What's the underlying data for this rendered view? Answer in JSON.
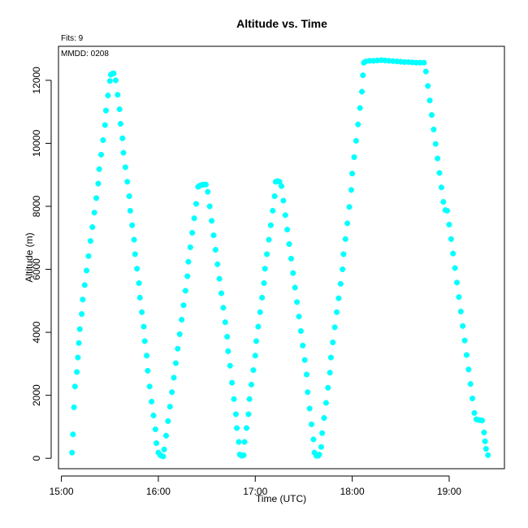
{
  "chart_data": {
    "type": "scatter",
    "title": "Altitude  vs. Time",
    "fits_note": "Fits: 9",
    "mmdd_note": "MMDD: 0208",
    "xlabel": "Time (UTC)",
    "ylabel": "Altitude (m)",
    "x_unit": "hours UTC",
    "xlim": [
      14.97,
      19.57
    ],
    "ylim": [
      -330,
      13080
    ],
    "x_ticks": [
      {
        "value": 15,
        "label": "15:00"
      },
      {
        "value": 16,
        "label": "16:00"
      },
      {
        "value": 17,
        "label": "17:00"
      },
      {
        "value": 18,
        "label": "18:00"
      },
      {
        "value": 19,
        "label": "19:00"
      }
    ],
    "y_ticks": [
      {
        "value": 0,
        "label": "0"
      },
      {
        "value": 2000,
        "label": "2000"
      },
      {
        "value": 4000,
        "label": "4000"
      },
      {
        "value": 6000,
        "label": "6000"
      },
      {
        "value": 8000,
        "label": "8000"
      },
      {
        "value": 10000,
        "label": "10000"
      },
      {
        "value": 12000,
        "label": "12000"
      }
    ],
    "grid": false,
    "marker_color": "#00ffff",
    "series": [
      {
        "points": [
          [
            15.11,
            180
          ],
          [
            15.12,
            760
          ],
          [
            15.13,
            1620
          ],
          [
            15.14,
            2280
          ],
          [
            15.16,
            2740
          ],
          [
            15.17,
            3200
          ],
          [
            15.18,
            3660
          ],
          [
            15.19,
            4100
          ],
          [
            15.21,
            4580
          ],
          [
            15.22,
            5040
          ],
          [
            15.24,
            5500
          ],
          [
            15.26,
            5960
          ],
          [
            15.28,
            6420
          ],
          [
            15.3,
            6900
          ],
          [
            15.32,
            7340
          ],
          [
            15.34,
            7800
          ],
          [
            15.36,
            8260
          ],
          [
            15.38,
            8720
          ],
          [
            15.39,
            9180
          ],
          [
            15.41,
            9640
          ],
          [
            15.43,
            10100
          ],
          [
            15.45,
            10580
          ],
          [
            15.46,
            11040
          ],
          [
            15.48,
            11520
          ],
          [
            15.5,
            11980
          ],
          [
            15.51,
            12180
          ],
          [
            15.53,
            12220
          ],
          [
            15.54,
            12220
          ],
          [
            15.56,
            12000
          ],
          [
            15.58,
            11540
          ],
          [
            15.6,
            11080
          ],
          [
            15.61,
            10620
          ],
          [
            15.63,
            10160
          ],
          [
            15.64,
            9700
          ],
          [
            15.66,
            9240
          ],
          [
            15.68,
            8780
          ],
          [
            15.7,
            8320
          ],
          [
            15.71,
            7860
          ],
          [
            15.73,
            7400
          ],
          [
            15.75,
            6940
          ],
          [
            15.76,
            6480
          ],
          [
            15.78,
            6020
          ],
          [
            15.8,
            5560
          ],
          [
            15.81,
            5100
          ],
          [
            15.83,
            4640
          ],
          [
            15.85,
            4180
          ],
          [
            15.86,
            3720
          ],
          [
            15.88,
            3260
          ],
          [
            15.89,
            2780
          ],
          [
            15.91,
            2280
          ],
          [
            15.93,
            1800
          ],
          [
            15.95,
            1360
          ],
          [
            15.97,
            920
          ],
          [
            15.98,
            480
          ],
          [
            16.0,
            180
          ],
          [
            16.02,
            100
          ],
          [
            16.03,
            80
          ],
          [
            16.05,
            60
          ],
          [
            16.06,
            280
          ],
          [
            16.08,
            720
          ],
          [
            16.1,
            1180
          ],
          [
            16.12,
            1640
          ],
          [
            16.14,
            2100
          ],
          [
            16.16,
            2560
          ],
          [
            16.18,
            3020
          ],
          [
            16.2,
            3480
          ],
          [
            16.22,
            3940
          ],
          [
            16.24,
            4400
          ],
          [
            16.26,
            4860
          ],
          [
            16.28,
            5320
          ],
          [
            16.3,
            5780
          ],
          [
            16.31,
            6240
          ],
          [
            16.33,
            6700
          ],
          [
            16.35,
            7160
          ],
          [
            16.37,
            7620
          ],
          [
            16.39,
            8080
          ],
          [
            16.41,
            8620
          ],
          [
            16.43,
            8660
          ],
          [
            16.45,
            8680
          ],
          [
            16.47,
            8690
          ],
          [
            16.49,
            8690
          ],
          [
            16.51,
            8460
          ],
          [
            16.53,
            8000
          ],
          [
            16.55,
            7540
          ],
          [
            16.57,
            7080
          ],
          [
            16.59,
            6620
          ],
          [
            16.61,
            6160
          ],
          [
            16.63,
            5700
          ],
          [
            16.65,
            5240
          ],
          [
            16.67,
            4780
          ],
          [
            16.69,
            4320
          ],
          [
            16.71,
            3860
          ],
          [
            16.72,
            3400
          ],
          [
            16.74,
            2940
          ],
          [
            16.76,
            2400
          ],
          [
            16.78,
            1880
          ],
          [
            16.8,
            1400
          ],
          [
            16.81,
            960
          ],
          [
            16.83,
            520
          ],
          [
            16.84,
            120
          ],
          [
            16.86,
            80
          ],
          [
            16.88,
            100
          ],
          [
            16.89,
            520
          ],
          [
            16.91,
            960
          ],
          [
            16.93,
            1400
          ],
          [
            16.94,
            1880
          ],
          [
            16.96,
            2340
          ],
          [
            16.98,
            2800
          ],
          [
            17.0,
            3260
          ],
          [
            17.01,
            3720
          ],
          [
            17.03,
            4180
          ],
          [
            17.05,
            4640
          ],
          [
            17.07,
            5100
          ],
          [
            17.09,
            5560
          ],
          [
            17.1,
            6020
          ],
          [
            17.12,
            6480
          ],
          [
            17.14,
            6940
          ],
          [
            17.16,
            7400
          ],
          [
            17.18,
            7860
          ],
          [
            17.2,
            8320
          ],
          [
            17.21,
            8780
          ],
          [
            17.23,
            8800
          ],
          [
            17.25,
            8780
          ],
          [
            17.27,
            8640
          ],
          [
            17.29,
            8180
          ],
          [
            17.31,
            7720
          ],
          [
            17.33,
            7260
          ],
          [
            17.35,
            6800
          ],
          [
            17.37,
            6340
          ],
          [
            17.39,
            5880
          ],
          [
            17.41,
            5420
          ],
          [
            17.43,
            4960
          ],
          [
            17.45,
            4500
          ],
          [
            17.47,
            4040
          ],
          [
            17.49,
            3580
          ],
          [
            17.51,
            3120
          ],
          [
            17.53,
            2660
          ],
          [
            17.54,
            2100
          ],
          [
            17.56,
            1580
          ],
          [
            17.58,
            1080
          ],
          [
            17.6,
            600
          ],
          [
            17.61,
            180
          ],
          [
            17.63,
            80
          ],
          [
            17.65,
            80
          ],
          [
            17.66,
            120
          ],
          [
            17.68,
            360
          ],
          [
            17.69,
            800
          ],
          [
            17.71,
            1280
          ],
          [
            17.73,
            1760
          ],
          [
            17.75,
            2240
          ],
          [
            17.77,
            2720
          ],
          [
            17.78,
            3200
          ],
          [
            17.8,
            3680
          ],
          [
            17.82,
            4160
          ],
          [
            17.84,
            4640
          ],
          [
            17.86,
            5080
          ],
          [
            17.88,
            5540
          ],
          [
            17.9,
            6000
          ],
          [
            17.91,
            6480
          ],
          [
            17.93,
            6960
          ],
          [
            17.95,
            7460
          ],
          [
            17.97,
            7980
          ],
          [
            17.99,
            8520
          ],
          [
            18.0,
            9040
          ],
          [
            18.02,
            9560
          ],
          [
            18.04,
            10080
          ],
          [
            18.06,
            10600
          ],
          [
            18.08,
            11120
          ],
          [
            18.1,
            11640
          ],
          [
            18.11,
            12160
          ],
          [
            18.12,
            12560
          ],
          [
            18.14,
            12600
          ],
          [
            18.18,
            12620
          ],
          [
            18.22,
            12620
          ],
          [
            18.26,
            12630
          ],
          [
            18.3,
            12640
          ],
          [
            18.34,
            12630
          ],
          [
            18.38,
            12620
          ],
          [
            18.42,
            12610
          ],
          [
            18.46,
            12600
          ],
          [
            18.5,
            12590
          ],
          [
            18.54,
            12580
          ],
          [
            18.58,
            12580
          ],
          [
            18.62,
            12570
          ],
          [
            18.66,
            12560
          ],
          [
            18.7,
            12560
          ],
          [
            18.74,
            12560
          ],
          [
            18.76,
            12280
          ],
          [
            18.78,
            11820
          ],
          [
            18.8,
            11360
          ],
          [
            18.82,
            10900
          ],
          [
            18.84,
            10440
          ],
          [
            18.86,
            9980
          ],
          [
            18.88,
            9520
          ],
          [
            18.9,
            9060
          ],
          [
            18.92,
            8600
          ],
          [
            18.94,
            8140
          ],
          [
            18.96,
            7880
          ],
          [
            18.98,
            7860
          ],
          [
            19.0,
            7420
          ],
          [
            19.02,
            6960
          ],
          [
            19.04,
            6500
          ],
          [
            19.06,
            6040
          ],
          [
            19.08,
            5580
          ],
          [
            19.1,
            5120
          ],
          [
            19.12,
            4660
          ],
          [
            19.14,
            4200
          ],
          [
            19.16,
            3740
          ],
          [
            19.18,
            3280
          ],
          [
            19.2,
            2820
          ],
          [
            19.22,
            2360
          ],
          [
            19.24,
            1900
          ],
          [
            19.26,
            1440
          ],
          [
            19.28,
            1240
          ],
          [
            19.3,
            1220
          ],
          [
            19.32,
            1210
          ],
          [
            19.34,
            1200
          ],
          [
            19.36,
            820
          ],
          [
            19.37,
            540
          ],
          [
            19.38,
            300
          ],
          [
            19.4,
            100
          ]
        ]
      }
    ]
  }
}
